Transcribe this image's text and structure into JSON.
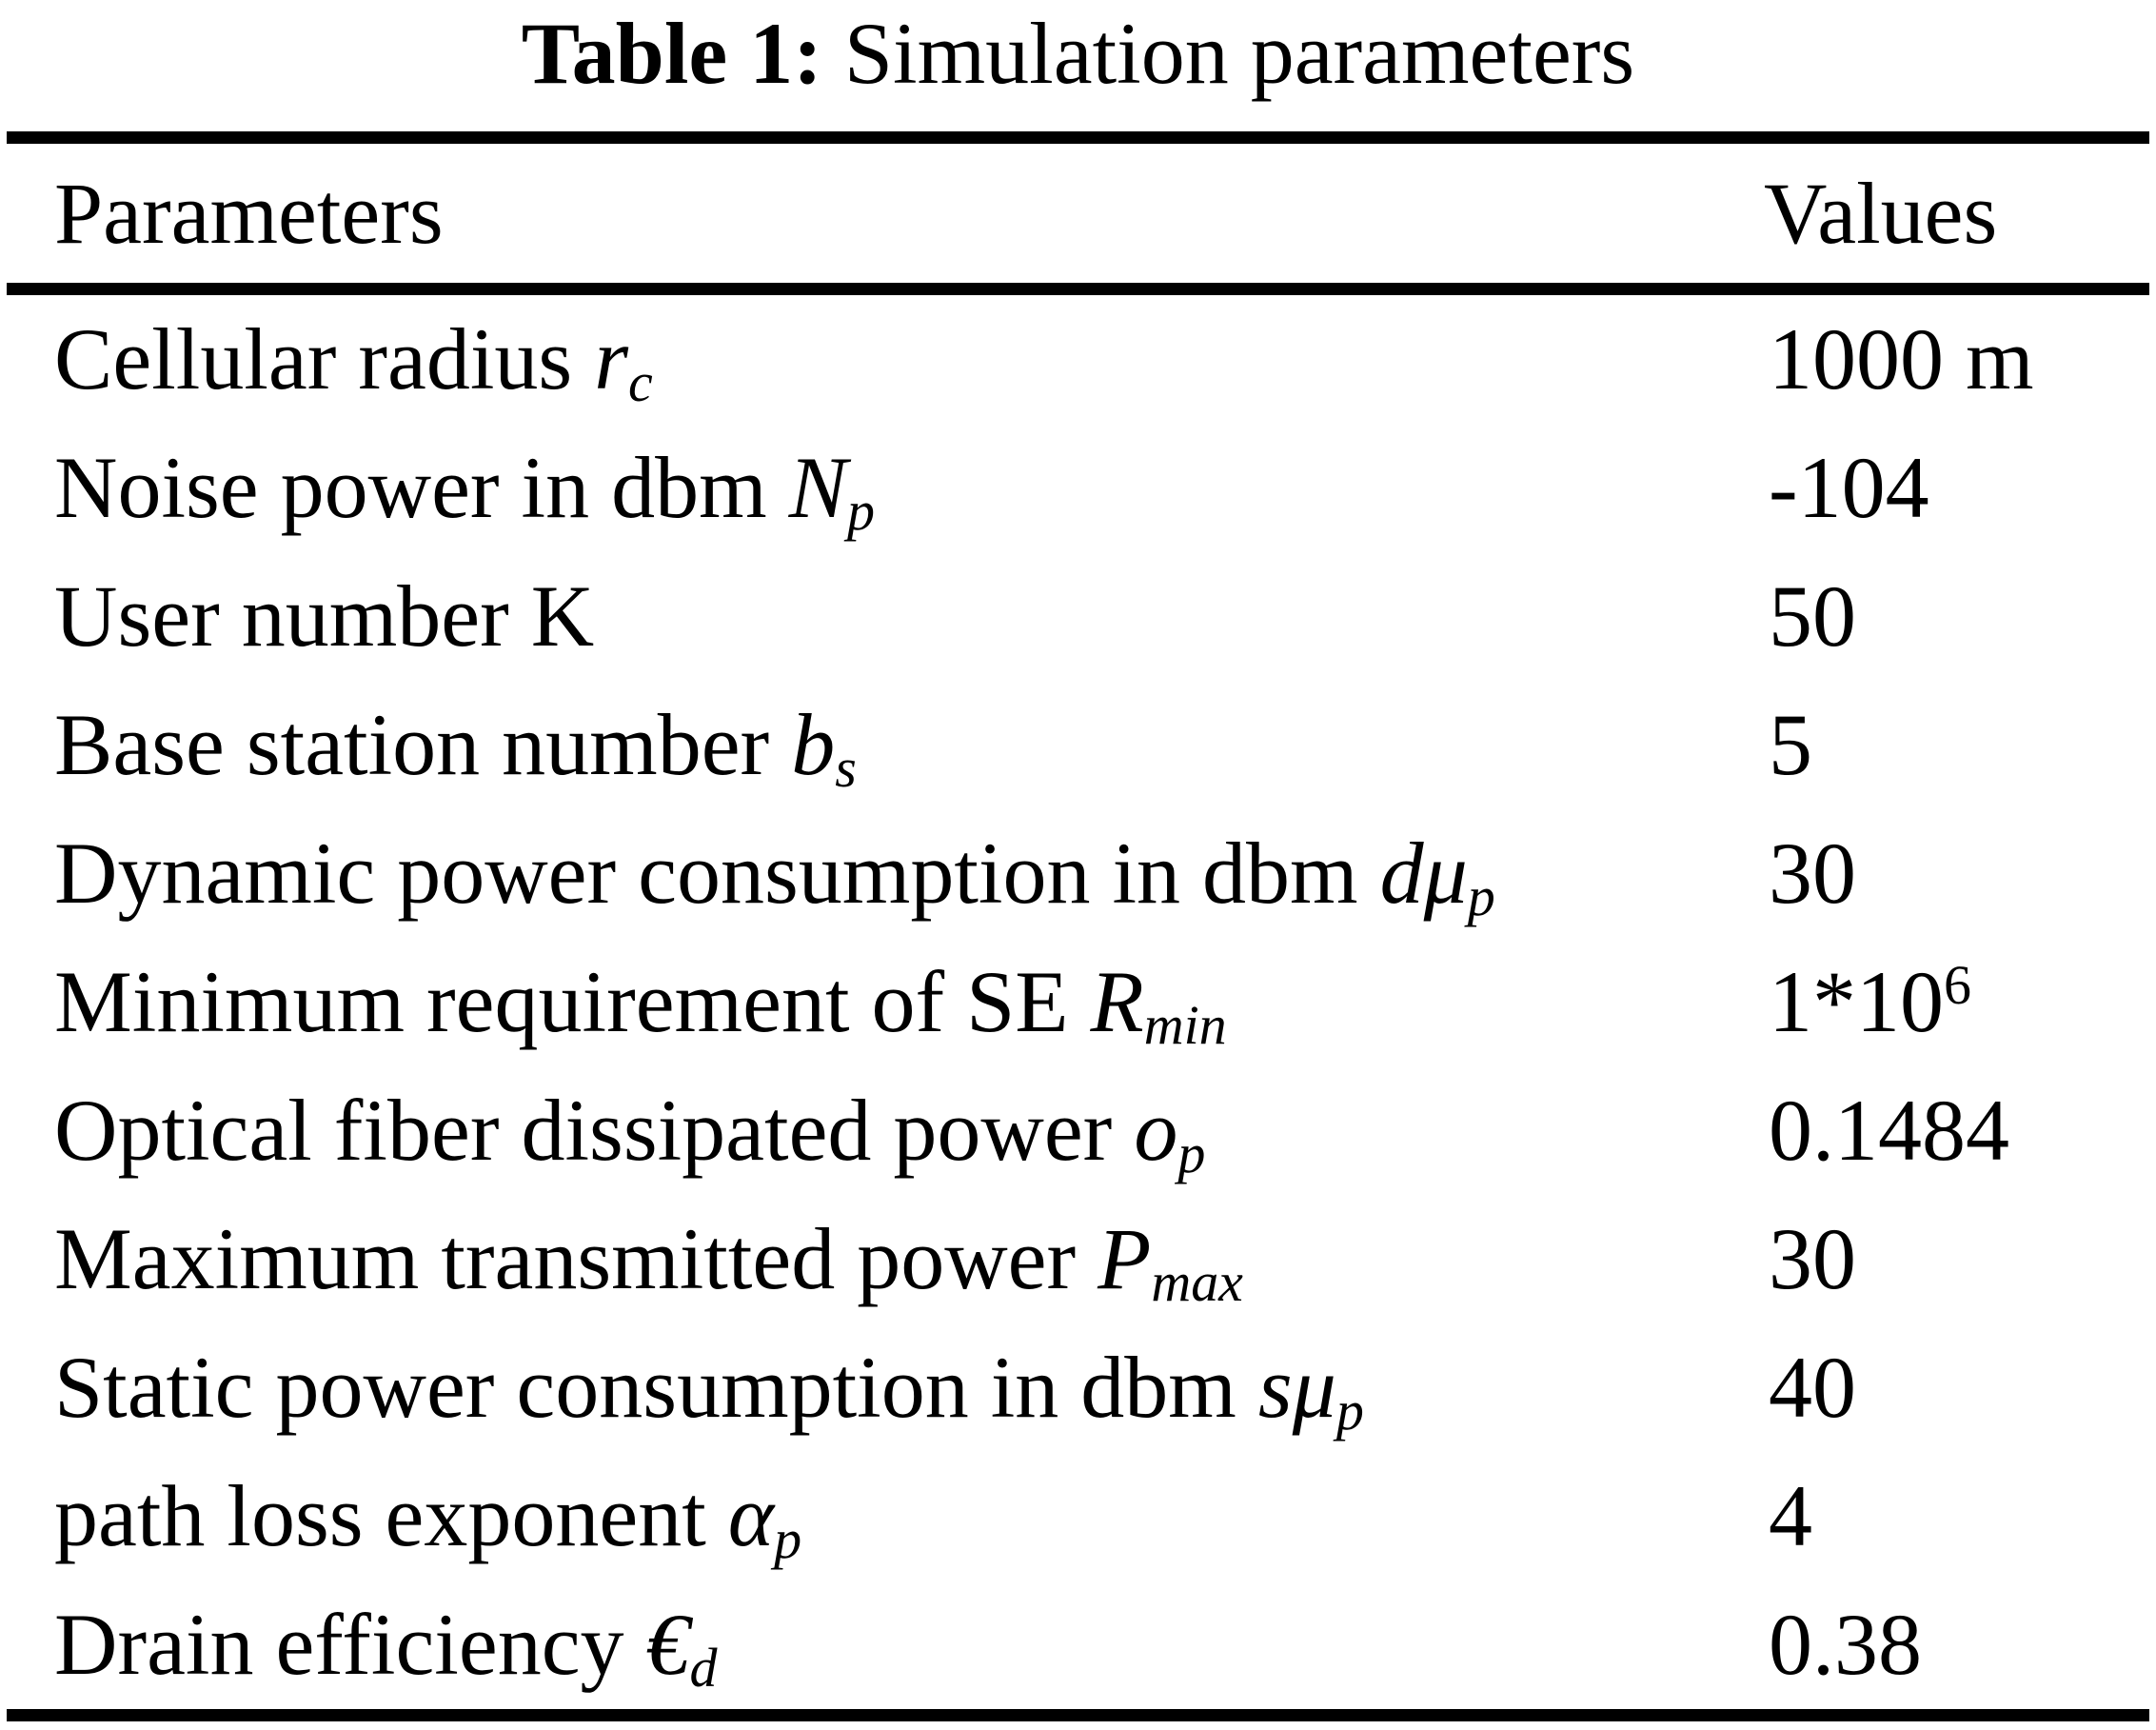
{
  "title": {
    "bold": "Table 1:",
    "rest": " Simulation parameters"
  },
  "columns": {
    "param": "Parameters",
    "value": "Values"
  },
  "rows": [
    {
      "label": "Cellular radius ",
      "sym": "r",
      "sub": "c",
      "value": "1000 m",
      "value_sup": ""
    },
    {
      "label": "Noise power in dbm ",
      "sym": "N",
      "sub": "p",
      "value": "-104",
      "value_sup": ""
    },
    {
      "label": "User number K",
      "sym": "",
      "sub": "",
      "value": "50",
      "value_sup": ""
    },
    {
      "label": "Base station number ",
      "sym": "b",
      "sub": "s",
      "value": "5",
      "value_sup": ""
    },
    {
      "label": "Dynamic power consumption in dbm ",
      "sym": "dμ",
      "sub": "p",
      "value": "30",
      "value_sup": ""
    },
    {
      "label": "Minimum requirement of SE ",
      "sym": "R",
      "sub": "min",
      "value": "1*10",
      "value_sup": "6"
    },
    {
      "label": "Optical fiber dissipated power ",
      "sym": "o",
      "sub": "p",
      "value": "0.1484",
      "value_sup": ""
    },
    {
      "label": "Maximum transmitted power ",
      "sym": "P",
      "sub": "max",
      "value": "30",
      "value_sup": ""
    },
    {
      "label": "Static power consumption in dbm ",
      "sym": "sμ",
      "sub": "p",
      "value": "40",
      "value_sup": ""
    },
    {
      "label": "path loss exponent ",
      "sym": "α",
      "sub": "p",
      "value": "4",
      "value_sup": ""
    },
    {
      "label": "Drain efficiency ",
      "sym": "€",
      "sub": "d",
      "value": "0.38",
      "value_sup": ""
    }
  ]
}
